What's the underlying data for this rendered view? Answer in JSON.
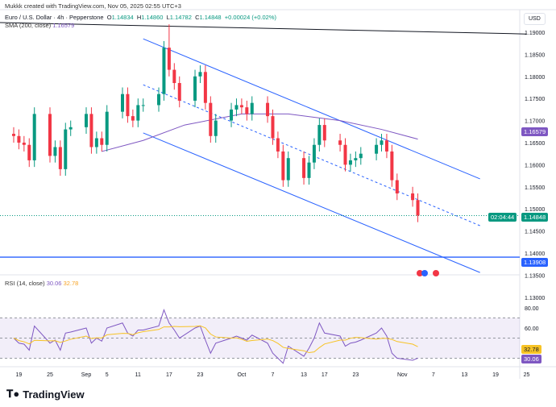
{
  "credit": "Mukkk created with TradingView.com, Nov 05, 2025 02:55 UTC+3",
  "legend": {
    "symbol": "Euro / U.S. Dollar · 4h · Pepperstone",
    "o_label": "O",
    "o": "1.14834",
    "h_label": "H",
    "h": "1.14860",
    "l_label": "L",
    "l": "1.14782",
    "c_label": "C",
    "c": "1.14848",
    "change": "+0.00024 (+0.02%)"
  },
  "sma": {
    "label": "SMA (200, close)",
    "value": "1.16579"
  },
  "rsi": {
    "label": "RSI (14, close)",
    "value": "30.06",
    "ma_value": "32.78"
  },
  "currency": "USD",
  "logo": "TradingView",
  "colors": {
    "up": "#089981",
    "down": "#f23645",
    "sma": "#7e57c2",
    "channel": "#2962ff",
    "rsi": "#7e57c2",
    "rsi_ma": "#f7c325"
  },
  "price_axis": [
    "1.19000",
    "1.18500",
    "1.18000",
    "1.17500",
    "1.17000",
    "1.16500",
    "1.16000",
    "1.15500",
    "1.15000",
    "1.14500",
    "1.14000",
    "1.13500",
    "1.13000"
  ],
  "rsi_axis": [
    "80.00",
    "60.00"
  ],
  "price_labels": {
    "last": "1.14848",
    "countdown": "02:04:44",
    "sma": "1.16579",
    "hline": "1.13908"
  },
  "chart_data": {
    "type": "candlestick",
    "time_ticks": [
      [
        "2025-08-19",
        "19"
      ],
      [
        "2025-08-25",
        "25"
      ],
      [
        "2025-09-01",
        "Sep"
      ],
      [
        "2025-09-05",
        "5"
      ],
      [
        "2025-09-11",
        "11"
      ],
      [
        "2025-09-17",
        "17"
      ],
      [
        "2025-09-23",
        "23"
      ],
      [
        "2025-10-01",
        "Oct"
      ],
      [
        "2025-10-07",
        "7"
      ],
      [
        "2025-10-13",
        "13"
      ],
      [
        "2025-10-17",
        "17"
      ],
      [
        "2025-10-23",
        "23"
      ],
      [
        "2025-11-01",
        "Nov"
      ],
      [
        "2025-11-07",
        "7"
      ],
      [
        "2025-11-13",
        "13"
      ],
      [
        "2025-11-19",
        "19"
      ],
      [
        "2025-11-25",
        "25"
      ]
    ],
    "ylim": [
      1.13,
      1.19
    ],
    "closes": [
      [
        "2025-08-18",
        1.1665
      ],
      [
        "2025-08-19",
        1.165
      ],
      [
        "2025-08-20",
        1.1645
      ],
      [
        "2025-08-21",
        1.161
      ],
      [
        "2025-08-22",
        1.1715
      ],
      [
        "2025-08-25",
        1.162
      ],
      [
        "2025-08-26",
        1.164
      ],
      [
        "2025-08-27",
        1.159
      ],
      [
        "2025-08-28",
        1.168
      ],
      [
        "2025-08-29",
        1.1685
      ],
      [
        "2025-09-01",
        1.1715
      ],
      [
        "2025-09-02",
        1.164
      ],
      [
        "2025-09-03",
        1.166
      ],
      [
        "2025-09-04",
        1.1645
      ],
      [
        "2025-09-05",
        1.172
      ],
      [
        "2025-09-08",
        1.176
      ],
      [
        "2025-09-09",
        1.171
      ],
      [
        "2025-09-10",
        1.17
      ],
      [
        "2025-09-11",
        1.1735
      ],
      [
        "2025-09-12",
        1.1735
      ],
      [
        "2025-09-15",
        1.176
      ],
      [
        "2025-09-16",
        1.1865
      ],
      [
        "2025-09-17",
        1.1815
      ],
      [
        "2025-09-18",
        1.1785
      ],
      [
        "2025-09-19",
        1.1745
      ],
      [
        "2025-09-22",
        1.18
      ],
      [
        "2025-09-23",
        1.181
      ],
      [
        "2025-09-24",
        1.174
      ],
      [
        "2025-09-25",
        1.1665
      ],
      [
        "2025-09-26",
        1.17
      ],
      [
        "2025-09-29",
        1.1725
      ],
      [
        "2025-09-30",
        1.1735
      ],
      [
        "2025-10-01",
        1.173
      ],
      [
        "2025-10-02",
        1.1715
      ],
      [
        "2025-10-03",
        1.174
      ],
      [
        "2025-10-06",
        1.171
      ],
      [
        "2025-10-07",
        1.166
      ],
      [
        "2025-10-08",
        1.163
      ],
      [
        "2025-10-09",
        1.1565
      ],
      [
        "2025-10-10",
        1.1615
      ],
      [
        "2025-10-13",
        1.157
      ],
      [
        "2025-10-14",
        1.1605
      ],
      [
        "2025-10-15",
        1.1645
      ],
      [
        "2025-10-16",
        1.169
      ],
      [
        "2025-10-17",
        1.1655
      ],
      [
        "2025-10-20",
        1.1645
      ],
      [
        "2025-10-21",
        1.16
      ],
      [
        "2025-10-22",
        1.161
      ],
      [
        "2025-10-23",
        1.1615
      ],
      [
        "2025-10-24",
        1.1625
      ],
      [
        "2025-10-27",
        1.1645
      ],
      [
        "2025-10-28",
        1.1655
      ],
      [
        "2025-10-29",
        1.163
      ],
      [
        "2025-10-30",
        1.1565
      ],
      [
        "2025-10-31",
        1.1535
      ],
      [
        "2025-11-03",
        1.152
      ],
      [
        "2025-11-04",
        1.1485
      ]
    ],
    "spike_high": [
      "2025-09-17",
      1.1918
    ],
    "sma200": [
      [
        "2025-09-04",
        1.163
      ],
      [
        "2025-09-12",
        1.1655
      ],
      [
        "2025-09-20",
        1.169
      ],
      [
        "2025-10-01",
        1.1715
      ],
      [
        "2025-10-10",
        1.1715
      ],
      [
        "2025-10-20",
        1.17
      ],
      [
        "2025-10-28",
        1.168
      ],
      [
        "2025-11-04",
        1.1658
      ]
    ],
    "trend_line": [
      [
        "2025-08-15",
        1.1922
      ],
      [
        "2025-11-25",
        1.1896
      ]
    ],
    "channel_upper": [
      [
        "2025-09-12",
        1.1885
      ],
      [
        "2025-11-16",
        1.1568
      ]
    ],
    "channel_mid": [
      [
        "2025-09-12",
        1.1781
      ],
      [
        "2025-11-16",
        1.1462
      ]
    ],
    "channel_lower": [
      [
        "2025-09-12",
        1.1672
      ],
      [
        "2025-11-16",
        1.1356
      ]
    ],
    "hline": 1.13908,
    "rsi_values": [
      50,
      45,
      44,
      38,
      62,
      45,
      48,
      38,
      55,
      56,
      60,
      45,
      50,
      47,
      60,
      65,
      55,
      52,
      58,
      58,
      62,
      78,
      65,
      58,
      50,
      60,
      62,
      48,
      35,
      45,
      50,
      52,
      50,
      48,
      53,
      45,
      35,
      30,
      25,
      42,
      32,
      40,
      50,
      65,
      55,
      52,
      42,
      45,
      46,
      48,
      55,
      60,
      52,
      35,
      30,
      28,
      30.06
    ],
    "rsi_band": [
      30,
      70
    ],
    "rsi_ylim": [
      20,
      90
    ]
  }
}
